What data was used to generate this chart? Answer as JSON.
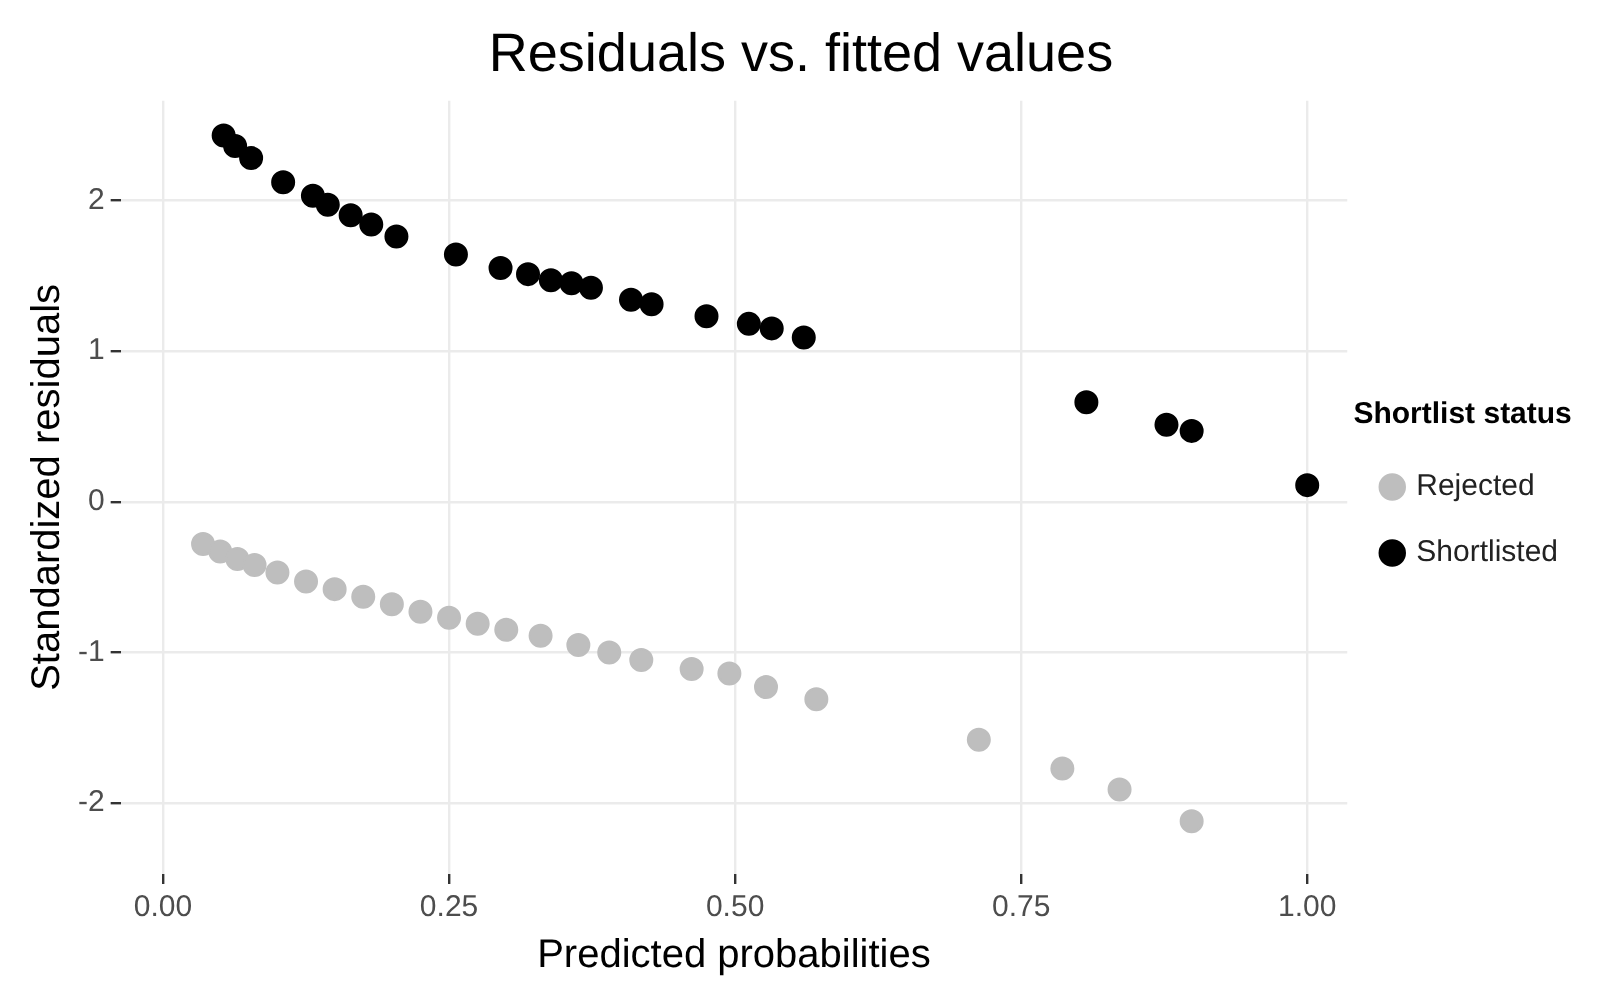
{
  "chart_data": {
    "type": "scatter",
    "title": "Residuals vs. fitted values",
    "xlabel": "Predicted probabilities",
    "ylabel": "Standardized residuals",
    "legend_title": "Shortlist status",
    "legend": "right",
    "grid": true,
    "marker": "circle",
    "xlim": [
      -0.037,
      1.035
    ],
    "ylim": [
      -2.47,
      2.66
    ],
    "xticks": [
      {
        "value": 0,
        "label": "0.00"
      },
      {
        "value": 0.25,
        "label": "0.25"
      },
      {
        "value": 0.5,
        "label": "0.50"
      },
      {
        "value": 0.75,
        "label": "0.75"
      },
      {
        "value": 1,
        "label": "1.00"
      }
    ],
    "yticks": [
      -2,
      -1,
      0,
      1,
      2
    ],
    "series": [
      {
        "name": "Rejected",
        "color": "#bebebe",
        "x": [
          0.035,
          0.05,
          0.065,
          0.08,
          0.1,
          0.125,
          0.15,
          0.175,
          0.2,
          0.225,
          0.25,
          0.275,
          0.3,
          0.33,
          0.363,
          0.39,
          0.418,
          0.462,
          0.495,
          0.527,
          0.571,
          0.713,
          0.786,
          0.836,
          0.899
        ],
        "values": [
          -0.28,
          -0.33,
          -0.38,
          -0.42,
          -0.47,
          -0.53,
          -0.58,
          -0.63,
          -0.68,
          -0.73,
          -0.77,
          -0.81,
          -0.85,
          -0.89,
          -0.95,
          -1.0,
          -1.05,
          -1.11,
          -1.14,
          -1.23,
          -1.31,
          -1.58,
          -1.77,
          -1.91,
          -2.12
        ]
      },
      {
        "name": "Shortlisted",
        "color": "#000000",
        "x": [
          0.053,
          0.063,
          0.077,
          0.105,
          0.131,
          0.144,
          0.164,
          0.182,
          0.204,
          0.256,
          0.295,
          0.319,
          0.339,
          0.357,
          0.374,
          0.409,
          0.427,
          0.475,
          0.512,
          0.532,
          0.56,
          0.807,
          0.877,
          0.899,
          1.0
        ],
        "values": [
          2.43,
          2.36,
          2.28,
          2.12,
          2.03,
          1.97,
          1.9,
          1.84,
          1.76,
          1.64,
          1.55,
          1.51,
          1.47,
          1.45,
          1.42,
          1.34,
          1.31,
          1.23,
          1.18,
          1.15,
          1.09,
          0.66,
          0.51,
          0.47,
          0.11
        ]
      }
    ]
  }
}
